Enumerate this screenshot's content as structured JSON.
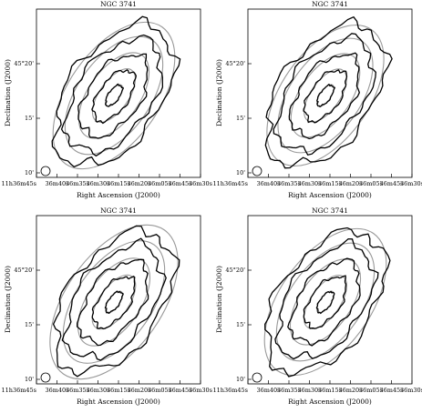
{
  "chart_data": [
    {
      "type": "contour",
      "title": "NGC 3741",
      "xlabel": "Right Ascension (J2000)",
      "ylabel": "Declination (J2000)",
      "x_ticks": [
        "11h36m45s",
        "36m40s",
        "36m35s",
        "36m30s",
        "36m15s",
        "36m20s",
        "36m05s",
        "36m45s",
        "36m30s"
      ],
      "y_ticks": [
        "45°20'",
        "15'",
        "10'"
      ],
      "contours": {
        "observed_levels": 5,
        "model_levels": 5,
        "observed_color": "#000000",
        "model_color": "#999999"
      },
      "beam": "circle lower-left"
    },
    {
      "type": "contour",
      "title": "NGC 3741",
      "xlabel": "Right Ascension (J2000)",
      "ylabel": "Declination (J2000)",
      "x_ticks": [
        "11h36m45s",
        "36m40s",
        "36m35s",
        "36m30s",
        "36m15s",
        "36m20s",
        "36m05s",
        "36m45s",
        "36m30s"
      ],
      "y_ticks": [
        "45°20'",
        "15'",
        "10'"
      ],
      "contours": {
        "observed_levels": 5,
        "model_levels": 5,
        "observed_color": "#000000",
        "model_color": "#999999"
      },
      "beam": "circle lower-left"
    },
    {
      "type": "contour",
      "title": "NGC 3741",
      "xlabel": "Right Ascension (J2000)",
      "ylabel": "Declination (J2000)",
      "x_ticks": [
        "11h36m45s",
        "36m40s",
        "36m35s",
        "36m30s",
        "36m15s",
        "36m20s",
        "36m05s",
        "36m45s",
        "36m30s"
      ],
      "y_ticks": [
        "45°20'",
        "15'",
        "10'"
      ],
      "contours": {
        "observed_levels": 5,
        "model_levels": 5,
        "observed_color": "#000000",
        "model_color": "#999999"
      },
      "beam": "circle lower-left"
    },
    {
      "type": "contour",
      "title": "NGC 3741",
      "xlabel": "Right Ascension (J2000)",
      "ylabel": "Declination (J2000)",
      "x_ticks": [
        "11h36m45s",
        "36m40s",
        "36m35s",
        "36m30s",
        "36m15s",
        "36m20s",
        "36m05s",
        "36m45s",
        "36m30s"
      ],
      "y_ticks": [
        "45°20'",
        "15'",
        "10'"
      ],
      "contours": {
        "observed_levels": 5,
        "model_levels": 5,
        "observed_color": "#000000",
        "model_color": "#999999"
      },
      "beam": "circle lower-left"
    }
  ]
}
